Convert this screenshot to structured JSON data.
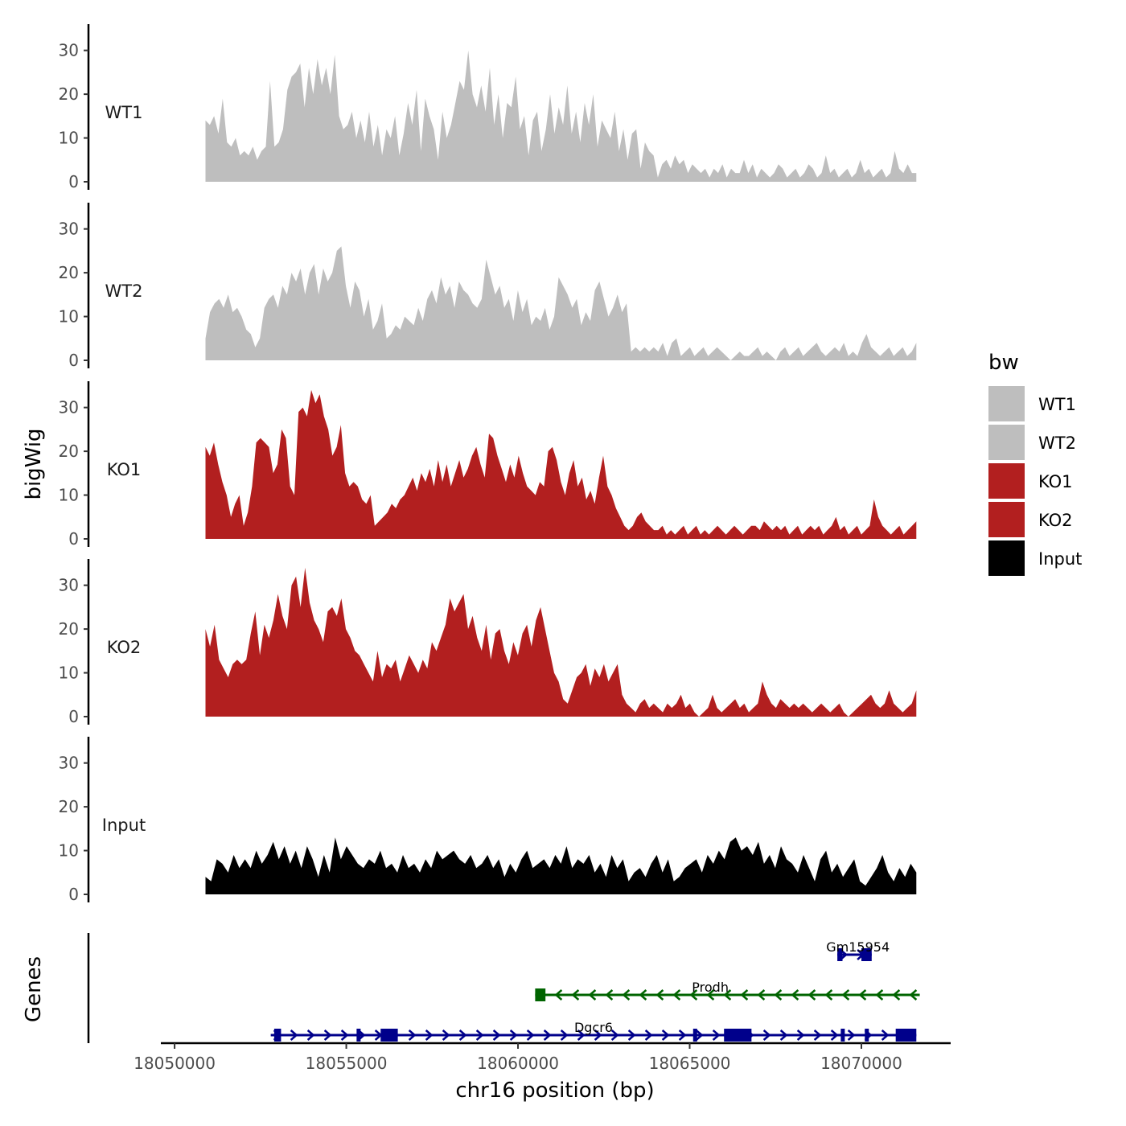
{
  "chart_data": {
    "type": "area",
    "title": "",
    "ylabel": "bigWig",
    "xlabel": "chr16 position (bp)",
    "genes_label": "Genes",
    "xlim": [
      18049600,
      18072600
    ],
    "data_range": [
      18050900,
      18071600
    ],
    "ylim": [
      0,
      36
    ],
    "y_ticks": [
      "0",
      "10",
      "20",
      "30"
    ],
    "x_ticks": [
      "18050000",
      "18055000",
      "18060000",
      "18065000",
      "18070000"
    ],
    "legend": {
      "title": "bw",
      "position": "right",
      "entries": [
        {
          "label": "WT1",
          "color": "#bebebe"
        },
        {
          "label": "WT2",
          "color": "#bebebe"
        },
        {
          "label": "KO1",
          "color": "#b21f1f"
        },
        {
          "label": "KO2",
          "color": "#b21f1f"
        },
        {
          "label": "Input",
          "color": "#000000"
        }
      ]
    },
    "series": [
      {
        "name": "WT1",
        "color": "#bebebe",
        "values": [
          14,
          13,
          15,
          11,
          19,
          9,
          8,
          10,
          6,
          7,
          6,
          8,
          5,
          7,
          8,
          23,
          8,
          9,
          12,
          21,
          24,
          25,
          27,
          17,
          26,
          20,
          28,
          22,
          26,
          20,
          29,
          15,
          12,
          13,
          16,
          10,
          14,
          9,
          16,
          8,
          13,
          6,
          12,
          10,
          15,
          6,
          11,
          18,
          13,
          21,
          7,
          19,
          15,
          12,
          5,
          16,
          10,
          13,
          18,
          23,
          21,
          30,
          20,
          17,
          22,
          16,
          26,
          13,
          20,
          10,
          18,
          17,
          24,
          12,
          15,
          6,
          14,
          16,
          7,
          12,
          20,
          11,
          17,
          13,
          22,
          11,
          16,
          9,
          18,
          13,
          20,
          8,
          14,
          12,
          10,
          16,
          7,
          12,
          5,
          11,
          12,
          3,
          9,
          7,
          6,
          1,
          4,
          5,
          3,
          6,
          4,
          5,
          2,
          4,
          3,
          2,
          3,
          1,
          3,
          2,
          4,
          1,
          3,
          2,
          2,
          5,
          2,
          4,
          1,
          3,
          2,
          1,
          2,
          4,
          3,
          1,
          2,
          3,
          1,
          2,
          4,
          3,
          1,
          2,
          6,
          2,
          3,
          1,
          2,
          3,
          1,
          2,
          5,
          2,
          3,
          1,
          2,
          3,
          1,
          2,
          7,
          3,
          2,
          4,
          2,
          2
        ]
      },
      {
        "name": "WT2",
        "color": "#bebebe",
        "values": [
          5,
          11,
          13,
          14,
          12,
          15,
          11,
          12,
          10,
          7,
          6,
          3,
          5,
          12,
          14,
          15,
          12,
          17,
          15,
          20,
          18,
          21,
          15,
          20,
          22,
          15,
          21,
          18,
          20,
          25,
          26,
          17,
          12,
          18,
          16,
          10,
          14,
          7,
          9,
          13,
          5,
          6,
          8,
          7,
          10,
          9,
          8,
          12,
          9,
          14,
          16,
          13,
          19,
          15,
          17,
          12,
          18,
          16,
          15,
          13,
          12,
          14,
          23,
          19,
          15,
          17,
          12,
          14,
          9,
          16,
          11,
          14,
          8,
          10,
          9,
          12,
          7,
          10,
          19,
          17,
          15,
          12,
          14,
          8,
          11,
          9,
          16,
          18,
          14,
          10,
          12,
          15,
          11,
          13,
          2,
          3,
          2,
          3,
          2,
          3,
          2,
          4,
          1,
          4,
          5,
          1,
          2,
          3,
          1,
          2,
          3,
          1,
          2,
          3,
          2,
          1,
          0,
          1,
          2,
          1,
          1,
          2,
          3,
          1,
          2,
          1,
          0,
          2,
          3,
          1,
          2,
          3,
          1,
          2,
          3,
          4,
          2,
          1,
          2,
          3,
          2,
          4,
          1,
          2,
          1,
          4,
          6,
          3,
          2,
          1,
          2,
          3,
          1,
          2,
          3,
          1,
          2,
          4
        ]
      },
      {
        "name": "KO1",
        "color": "#b21f1f",
        "values": [
          21,
          19,
          22,
          17,
          13,
          10,
          5,
          8,
          10,
          3,
          6,
          12,
          22,
          23,
          22,
          21,
          15,
          17,
          25,
          23,
          12,
          10,
          29,
          30,
          28,
          34,
          31,
          33,
          28,
          25,
          19,
          21,
          26,
          15,
          12,
          13,
          12,
          9,
          8,
          10,
          3,
          4,
          5,
          6,
          8,
          7,
          9,
          10,
          12,
          14,
          11,
          15,
          13,
          16,
          12,
          18,
          13,
          17,
          12,
          15,
          18,
          14,
          16,
          19,
          21,
          17,
          14,
          24,
          23,
          19,
          16,
          13,
          17,
          14,
          19,
          15,
          12,
          11,
          10,
          13,
          12,
          20,
          21,
          18,
          13,
          10,
          15,
          18,
          12,
          14,
          9,
          11,
          8,
          14,
          19,
          12,
          10,
          7,
          5,
          3,
          2,
          3,
          5,
          6,
          4,
          3,
          2,
          2,
          3,
          1,
          2,
          1,
          2,
          3,
          1,
          2,
          3,
          1,
          2,
          1,
          2,
          3,
          2,
          1,
          2,
          3,
          2,
          1,
          2,
          3,
          3,
          2,
          4,
          3,
          2,
          3,
          2,
          3,
          1,
          2,
          3,
          1,
          2,
          3,
          2,
          3,
          1,
          2,
          3,
          5,
          2,
          3,
          1,
          2,
          3,
          1,
          2,
          3,
          9,
          5,
          3,
          2,
          1,
          2,
          3,
          1,
          2,
          3,
          4
        ]
      },
      {
        "name": "KO2",
        "color": "#b21f1f",
        "values": [
          20,
          16,
          21,
          13,
          11,
          9,
          12,
          13,
          12,
          13,
          19,
          24,
          14,
          21,
          18,
          22,
          28,
          23,
          20,
          30,
          32,
          25,
          34,
          26,
          22,
          20,
          17,
          24,
          25,
          23,
          27,
          20,
          18,
          15,
          14,
          12,
          10,
          8,
          15,
          9,
          12,
          11,
          13,
          8,
          11,
          14,
          12,
          10,
          13,
          11,
          17,
          15,
          18,
          21,
          27,
          24,
          26,
          28,
          20,
          23,
          18,
          15,
          21,
          13,
          19,
          20,
          15,
          12,
          17,
          14,
          19,
          21,
          16,
          22,
          25,
          20,
          15,
          10,
          8,
          4,
          3,
          6,
          9,
          10,
          12,
          7,
          11,
          9,
          12,
          8,
          10,
          12,
          5,
          3,
          2,
          1,
          3,
          4,
          2,
          3,
          2,
          1,
          3,
          2,
          3,
          5,
          2,
          3,
          1,
          0,
          1,
          2,
          5,
          2,
          1,
          2,
          3,
          4,
          2,
          3,
          1,
          2,
          3,
          8,
          5,
          3,
          2,
          4,
          3,
          2,
          3,
          2,
          3,
          2,
          1,
          2,
          3,
          2,
          1,
          2,
          3,
          1,
          0,
          1,
          2,
          3,
          4,
          5,
          3,
          2,
          3,
          6,
          3,
          2,
          1,
          2,
          3,
          6
        ]
      },
      {
        "name": "Input",
        "color": "#000000",
        "values": [
          4,
          3,
          8,
          7,
          5,
          9,
          6,
          8,
          6,
          10,
          7,
          9,
          12,
          8,
          11,
          7,
          10,
          6,
          11,
          8,
          4,
          9,
          5,
          13,
          8,
          11,
          9,
          7,
          6,
          8,
          7,
          10,
          6,
          7,
          5,
          9,
          6,
          7,
          5,
          8,
          6,
          10,
          8,
          9,
          10,
          8,
          7,
          9,
          6,
          7,
          9,
          6,
          8,
          4,
          7,
          5,
          8,
          10,
          6,
          7,
          8,
          6,
          9,
          7,
          11,
          6,
          8,
          7,
          9,
          5,
          7,
          4,
          9,
          6,
          8,
          3,
          5,
          6,
          4,
          7,
          9,
          5,
          8,
          3,
          4,
          6,
          7,
          8,
          5,
          9,
          7,
          10,
          8,
          12,
          13,
          10,
          11,
          9,
          12,
          7,
          9,
          6,
          11,
          8,
          7,
          5,
          9,
          6,
          3,
          8,
          10,
          5,
          7,
          4,
          6,
          8,
          3,
          2,
          4,
          6,
          9,
          5,
          3,
          6,
          4,
          7,
          5
        ]
      }
    ],
    "genes": [
      {
        "name": "Gm15954",
        "strand": "+",
        "color": "#00008b",
        "start": 18069300,
        "end": 18070300,
        "exons": [
          [
            18069300,
            18069450
          ],
          [
            18070000,
            18070300
          ]
        ]
      },
      {
        "name": "Prodh",
        "strand": "-",
        "color": "#006400",
        "start": 18060500,
        "end": 18071700,
        "exons": [
          [
            18060500,
            18060800
          ]
        ]
      },
      {
        "name": "Dgcr6",
        "strand": "+",
        "color": "#00008b",
        "start": 18052800,
        "end": 18071600,
        "exons": [
          [
            18052900,
            18053100
          ],
          [
            18055300,
            18055350
          ],
          [
            18056000,
            18056500
          ],
          [
            18065100,
            18065200
          ],
          [
            18066000,
            18066800
          ],
          [
            18069400,
            18069500
          ],
          [
            18070100,
            18070200
          ],
          [
            18071000,
            18071600
          ]
        ]
      }
    ]
  }
}
